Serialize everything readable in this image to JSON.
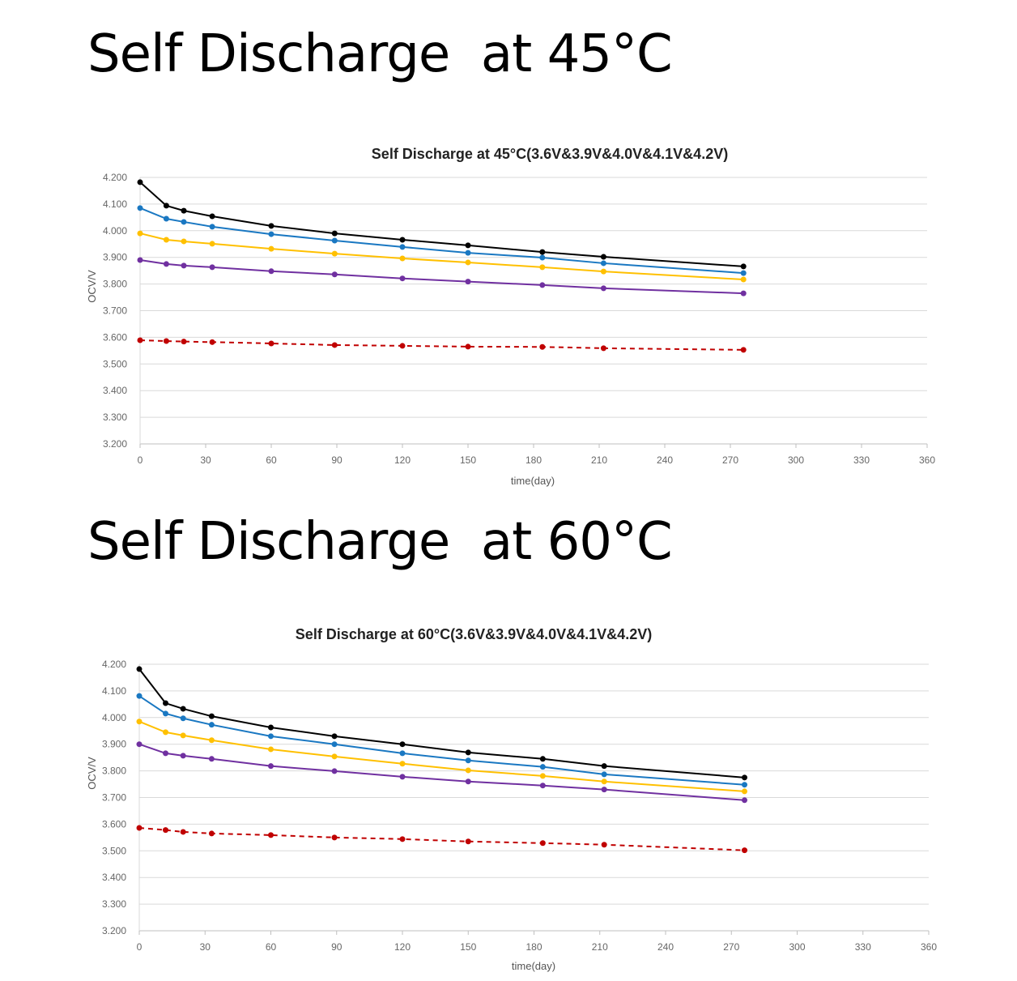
{
  "headings": [
    "Self Discharge  at 45°C",
    "Self Discharge  at 60°C"
  ],
  "chart_data": [
    {
      "type": "line",
      "title": "Self Discharge  at 45°C(3.6V&3.9V&4.0V&4.1V&4.2V)",
      "xlabel": "time(day)",
      "ylabel": "OCV/V",
      "xlim": [
        0,
        360
      ],
      "ylim": [
        3.2,
        4.2
      ],
      "xticks": [
        "0",
        "30",
        "60",
        "90",
        "120",
        "150",
        "180",
        "210",
        "240",
        "270",
        "300",
        "330",
        "360"
      ],
      "yticks": [
        "3.200",
        "3.300",
        "3.400",
        "3.500",
        "3.600",
        "3.700",
        "3.800",
        "3.900",
        "4.000",
        "4.100",
        "4.200"
      ],
      "grid": true,
      "x": [
        0,
        12,
        20,
        33,
        60,
        89,
        120,
        150,
        184,
        212,
        276
      ],
      "series": [
        {
          "color": "#000000",
          "dashed": false,
          "values": [
            4.182,
            4.094,
            4.075,
            4.054,
            4.018,
            3.99,
            3.966,
            3.945,
            3.92,
            3.902,
            3.866
          ]
        },
        {
          "color": "#1a78c2",
          "dashed": false,
          "values": [
            4.085,
            4.045,
            4.033,
            4.015,
            3.987,
            3.963,
            3.939,
            3.917,
            3.899,
            3.878,
            3.841
          ]
        },
        {
          "color": "#ffc000",
          "dashed": false,
          "values": [
            3.99,
            3.966,
            3.96,
            3.951,
            3.932,
            3.914,
            3.896,
            3.881,
            3.863,
            3.847,
            3.817
          ]
        },
        {
          "color": "#7030a0",
          "dashed": false,
          "values": [
            3.89,
            3.875,
            3.869,
            3.863,
            3.848,
            3.836,
            3.821,
            3.809,
            3.796,
            3.784,
            3.765
          ]
        },
        {
          "color": "#c00000",
          "dashed": true,
          "values": [
            3.589,
            3.586,
            3.584,
            3.582,
            3.577,
            3.571,
            3.568,
            3.565,
            3.564,
            3.559,
            3.553
          ]
        }
      ]
    },
    {
      "type": "line",
      "title": "Self Discharge  at 60°C(3.6V&3.9V&4.0V&4.1V&4.2V)",
      "xlabel": "time(day)",
      "ylabel": "OCV/V",
      "xlim": [
        0,
        360
      ],
      "ylim": [
        3.2,
        4.2
      ],
      "xticks": [
        "0",
        "30",
        "60",
        "90",
        "120",
        "150",
        "180",
        "210",
        "240",
        "270",
        "300",
        "330",
        "360"
      ],
      "yticks": [
        "3.200",
        "3.300",
        "3.400",
        "3.500",
        "3.600",
        "3.700",
        "3.800",
        "3.900",
        "4.000",
        "4.100",
        "4.200"
      ],
      "grid": true,
      "x": [
        0,
        12,
        20,
        33,
        60,
        89,
        120,
        150,
        184,
        212,
        276
      ],
      "series": [
        {
          "color": "#000000",
          "dashed": false,
          "values": [
            4.182,
            4.054,
            4.033,
            4.005,
            3.963,
            3.93,
            3.9,
            3.869,
            3.845,
            3.818,
            3.775
          ]
        },
        {
          "color": "#1a78c2",
          "dashed": false,
          "values": [
            4.081,
            4.015,
            3.997,
            3.973,
            3.93,
            3.9,
            3.866,
            3.839,
            3.815,
            3.787,
            3.748
          ]
        },
        {
          "color": "#ffc000",
          "dashed": false,
          "values": [
            3.985,
            3.945,
            3.933,
            3.915,
            3.881,
            3.854,
            3.827,
            3.802,
            3.781,
            3.76,
            3.723
          ]
        },
        {
          "color": "#7030a0",
          "dashed": false,
          "values": [
            3.9,
            3.866,
            3.857,
            3.845,
            3.818,
            3.799,
            3.778,
            3.76,
            3.745,
            3.73,
            3.69
          ]
        },
        {
          "color": "#c00000",
          "dashed": true,
          "values": [
            3.586,
            3.578,
            3.571,
            3.565,
            3.559,
            3.55,
            3.544,
            3.535,
            3.529,
            3.523,
            3.502
          ]
        }
      ]
    }
  ]
}
